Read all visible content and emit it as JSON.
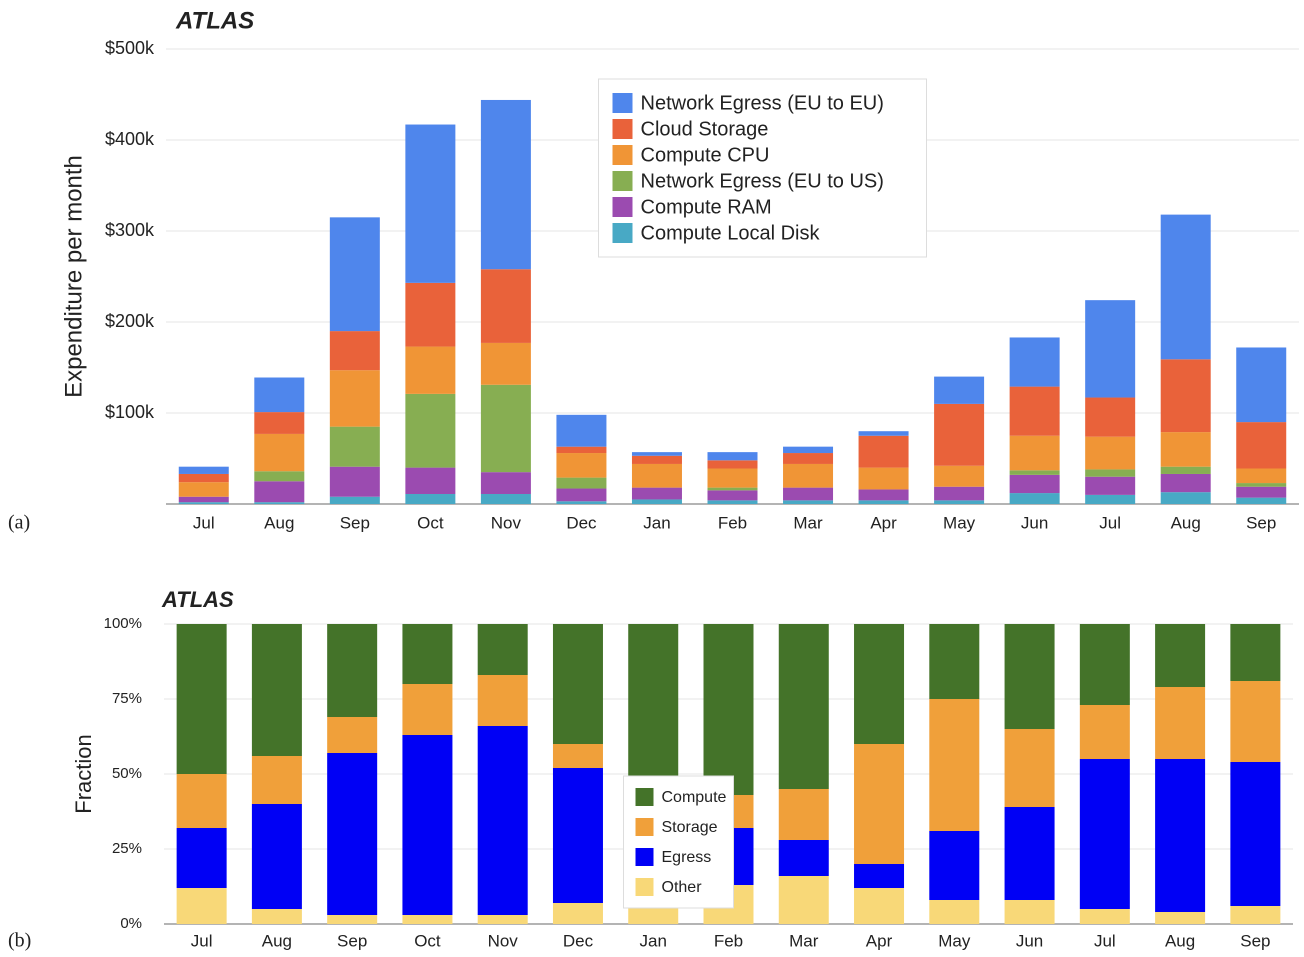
{
  "chart_data": [
    {
      "type": "stacked_bar",
      "panel_label": "(a)",
      "title": "ATLAS",
      "y_label": "Expenditure per month",
      "categories": [
        "Jul",
        "Aug",
        "Sep",
        "Oct",
        "Nov",
        "Dec",
        "Jan",
        "Feb",
        "Mar",
        "Apr",
        "May",
        "Jun",
        "Jul",
        "Aug",
        "Sep"
      ],
      "series": [
        {
          "name": "Network Egress (EU to EU)",
          "color": "#4f86ec",
          "values": [
            8000,
            38000,
            125000,
            174000,
            186000,
            35000,
            4000,
            9000,
            7000,
            5000,
            30000,
            54000,
            107000,
            159000,
            82000
          ]
        },
        {
          "name": "Cloud Storage",
          "color": "#e9623a",
          "values": [
            9000,
            24000,
            43000,
            70000,
            81000,
            7000,
            9000,
            9000,
            12000,
            35000,
            68000,
            54000,
            43000,
            80000,
            51000
          ]
        },
        {
          "name": "Compute CPU",
          "color": "#f09536",
          "values": [
            16000,
            41000,
            62000,
            52000,
            46000,
            27000,
            26000,
            21000,
            26000,
            24000,
            23000,
            38000,
            36000,
            38000,
            16000
          ]
        },
        {
          "name": "Network Egress (EU to US)",
          "color": "#87ae52",
          "values": [
            0,
            11000,
            44000,
            81000,
            96000,
            12000,
            0,
            3000,
            0,
            0,
            0,
            5000,
            8000,
            8000,
            4000
          ]
        },
        {
          "name": "Compute RAM",
          "color": "#9b4bb0",
          "values": [
            6000,
            23000,
            33000,
            29000,
            24000,
            14000,
            13000,
            11000,
            14000,
            12000,
            15000,
            20000,
            20000,
            20000,
            12000
          ]
        },
        {
          "name": "Compute Local Disk",
          "color": "#48a9c5",
          "values": [
            2000,
            2000,
            8000,
            11000,
            11000,
            3000,
            5000,
            4000,
            4000,
            4000,
            4000,
            12000,
            10000,
            13000,
            7000
          ]
        }
      ],
      "ylim": [
        0,
        500000
      ],
      "yticks": [
        {
          "value": 100000,
          "label": "$100k"
        },
        {
          "value": 200000,
          "label": "$200k"
        },
        {
          "value": 300000,
          "label": "$300k"
        },
        {
          "value": 400000,
          "label": "$400k"
        },
        {
          "value": 500000,
          "label": "$500k"
        }
      ],
      "grid": true,
      "legend_position": "upper center"
    },
    {
      "type": "stacked_bar",
      "panel_label": "(b)",
      "title": "ATLAS",
      "y_label": "Fraction",
      "categories": [
        "Jul",
        "Aug",
        "Sep",
        "Oct",
        "Nov",
        "Dec",
        "Jan",
        "Feb",
        "Mar",
        "Apr",
        "May",
        "Jun",
        "Jul",
        "Aug",
        "Sep"
      ],
      "series": [
        {
          "name": "Compute",
          "color": "#447329",
          "values": [
            50,
            44,
            31,
            20,
            17,
            40,
            65,
            57,
            55,
            40,
            25,
            35,
            27,
            21,
            19
          ]
        },
        {
          "name": "Storage",
          "color": "#f0a03a",
          "values": [
            18,
            16,
            12,
            17,
            17,
            8,
            12,
            11,
            17,
            40,
            44,
            26,
            18,
            24,
            27
          ]
        },
        {
          "name": "Egress",
          "color": "#0000f5",
          "values": [
            20,
            35,
            54,
            60,
            63,
            45,
            12,
            19,
            12,
            8,
            23,
            31,
            50,
            51,
            48
          ]
        },
        {
          "name": "Other",
          "color": "#f8d878",
          "values": [
            12,
            5,
            3,
            3,
            3,
            7,
            11,
            13,
            16,
            12,
            8,
            8,
            5,
            4,
            6
          ]
        }
      ],
      "ylim": [
        0,
        100
      ],
      "yticks": [
        {
          "value": 0,
          "label": "0%"
        },
        {
          "value": 25,
          "label": "25%"
        },
        {
          "value": 50,
          "label": "50%"
        },
        {
          "value": 75,
          "label": "75%"
        },
        {
          "value": 100,
          "label": "100%"
        }
      ],
      "grid": true,
      "legend_position": "lower center"
    }
  ]
}
